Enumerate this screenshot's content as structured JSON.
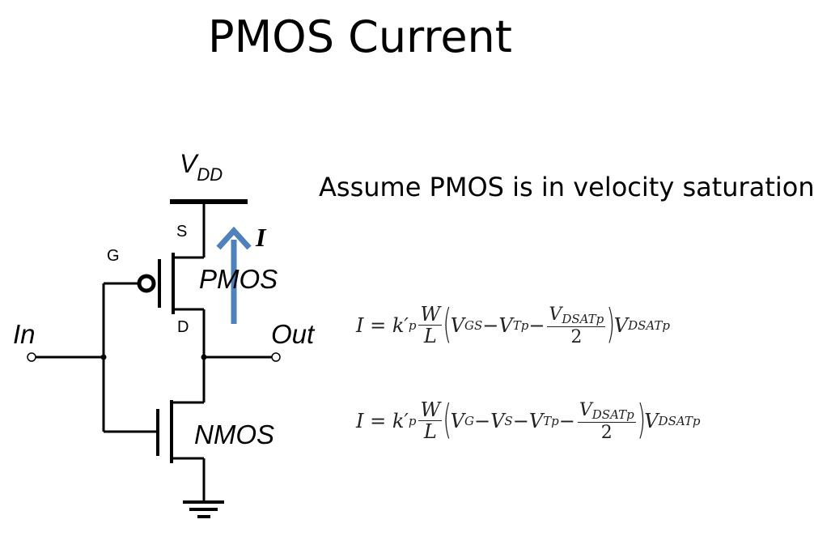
{
  "title": "PMOS Current",
  "assumption": "Assume PMOS is in velocity saturation",
  "circuit": {
    "vdd": "V",
    "vdd_sub": "DD",
    "source_label": "S",
    "gate_label": "G",
    "drain_label": "D",
    "current_label": "I",
    "pmos_label": "PMOS",
    "nmos_label": "NMOS",
    "input_label": "In",
    "output_label": "Out",
    "arrow_color": "#4f81bd"
  },
  "equations": {
    "eq1": {
      "lhs": "I = k′",
      "lhs_sub": "p",
      "frac_num": "W",
      "frac_den": "L",
      "t1": "V",
      "t1_sub": "GS",
      "minus1": " − ",
      "t2": "V",
      "t2_sub": "Tp",
      "minus2": " − ",
      "inner_num": "V",
      "inner_num_sub": "DSATp",
      "inner_den": "2",
      "tail": "V",
      "tail_sub": "DSATp"
    },
    "eq2": {
      "lhs": "I = k′",
      "lhs_sub": "p",
      "frac_num": "W",
      "frac_den": "L",
      "t1": "V",
      "t1_sub": "G",
      "minus1": " − ",
      "t2": "V",
      "t2_sub": "S",
      "minus2": " − ",
      "t3": "V",
      "t3_sub": "Tp",
      "minus3": " − ",
      "inner_num": "V",
      "inner_num_sub": "DSATp",
      "inner_den": "2",
      "tail": "V",
      "tail_sub": "DSATp"
    }
  }
}
